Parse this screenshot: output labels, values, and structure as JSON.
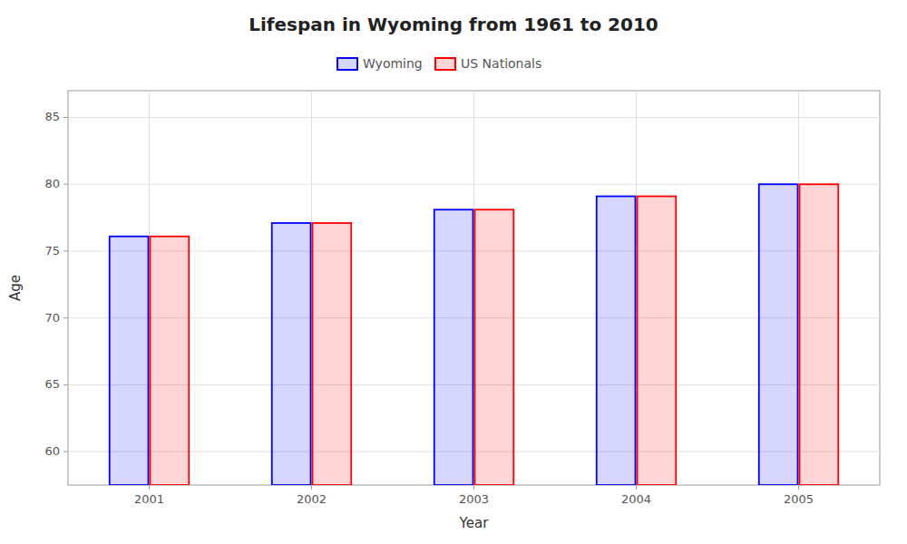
{
  "chart_data": {
    "type": "bar",
    "title": "Lifespan in Wyoming from 1961 to 2010",
    "x_label": "Year",
    "y_label": "Age",
    "categories": [
      "2001",
      "2002",
      "2003",
      "2004",
      "2005"
    ],
    "series": [
      {
        "name": "Wyoming",
        "color": "#0000ff",
        "values": [
          76.1,
          77.1,
          78.1,
          79.1,
          80.0
        ]
      },
      {
        "name": "US Nationals",
        "color": "#ff0000",
        "values": [
          76.1,
          77.1,
          78.1,
          79.1,
          80.0
        ]
      }
    ],
    "ylim": [
      57.5,
      87
    ],
    "yticks": [
      60,
      65,
      70,
      75,
      80,
      85
    ],
    "grid": true,
    "legend": "top"
  }
}
